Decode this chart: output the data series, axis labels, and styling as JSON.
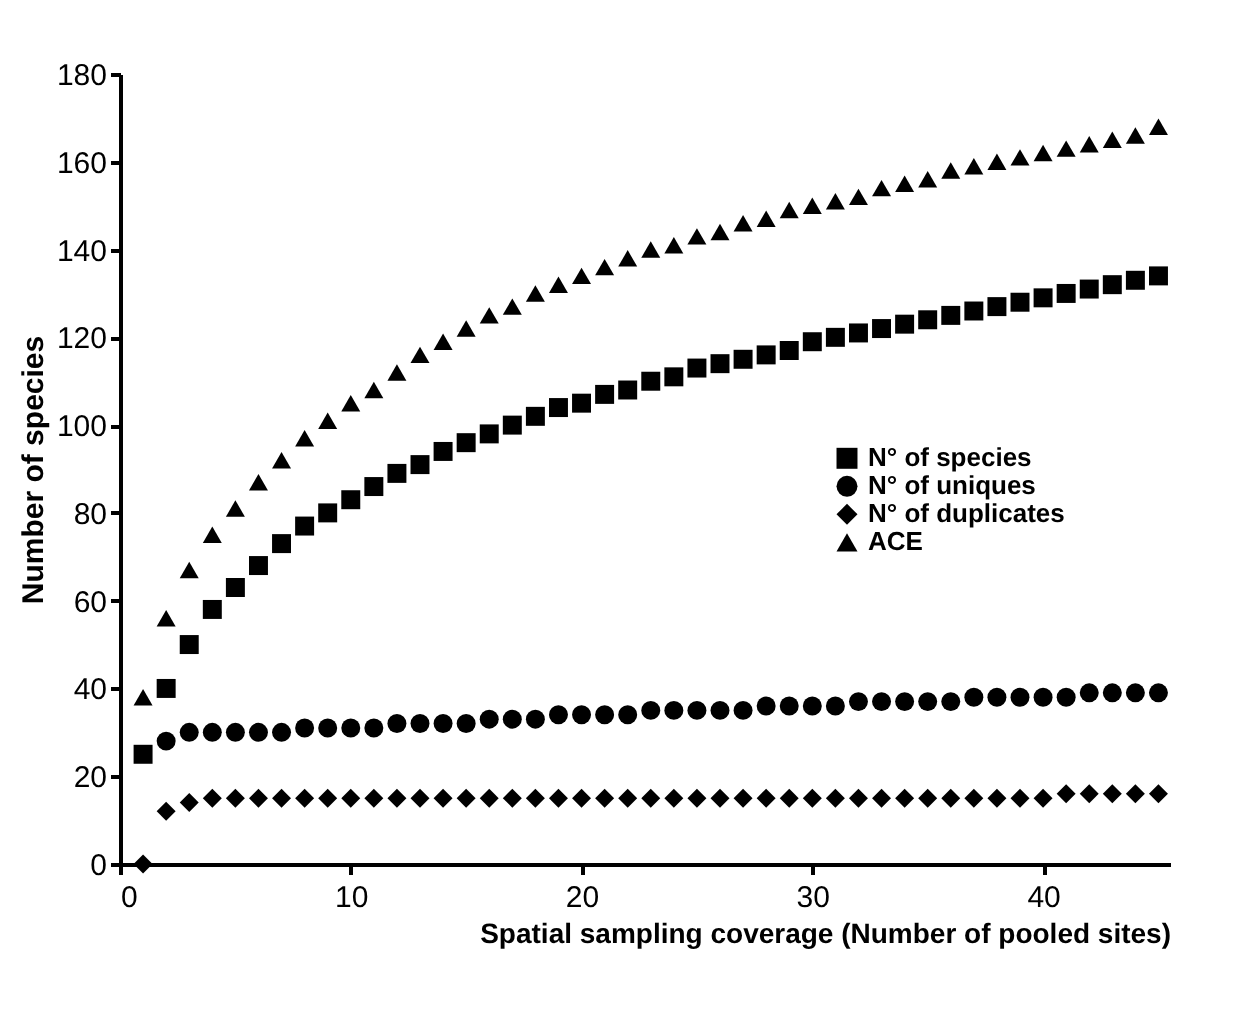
{
  "chart_data": {
    "type": "scatter",
    "xlabel": "Spatial sampling coverage (Number of pooled sites)",
    "ylabel": "Number of species",
    "x": [
      1,
      2,
      3,
      4,
      5,
      6,
      7,
      8,
      9,
      10,
      11,
      12,
      13,
      14,
      15,
      16,
      17,
      18,
      19,
      20,
      21,
      22,
      23,
      24,
      25,
      26,
      27,
      28,
      29,
      30,
      31,
      32,
      33,
      34,
      35,
      36,
      37,
      38,
      39,
      40,
      41,
      42,
      43,
      44,
      45
    ],
    "xlim": [
      0,
      45.5
    ],
    "xticks": [
      0,
      10,
      20,
      30,
      40
    ],
    "ylim": [
      0,
      180
    ],
    "yticks": [
      0,
      20,
      40,
      60,
      80,
      100,
      120,
      140,
      160,
      180
    ],
    "grid": false,
    "legend": "right",
    "series": [
      {
        "name": "N° of species",
        "color": "#000000",
        "marker": "square",
        "values": [
          25,
          40,
          50,
          58,
          63,
          68,
          73,
          77,
          80,
          83,
          86,
          89,
          91,
          94,
          96,
          98,
          100,
          102,
          104,
          105,
          107,
          108,
          110,
          111,
          113,
          114,
          115,
          116,
          117,
          119,
          120,
          121,
          122,
          123,
          124,
          125,
          126,
          127,
          128,
          129,
          130,
          131,
          132,
          133,
          134
        ]
      },
      {
        "name": "N° of uniques",
        "color": "#000000",
        "marker": "circle",
        "values": [
          null,
          28,
          30,
          30,
          30,
          30,
          30,
          31,
          31,
          31,
          31,
          32,
          32,
          32,
          32,
          33,
          33,
          33,
          34,
          34,
          34,
          34,
          35,
          35,
          35,
          35,
          35,
          36,
          36,
          36,
          36,
          37,
          37,
          37,
          37,
          37,
          38,
          38,
          38,
          38,
          38,
          39,
          39,
          39,
          39
        ]
      },
      {
        "name": "N° of duplicates",
        "color": "#000000",
        "marker": "diamond",
        "values": [
          0,
          12,
          14,
          15,
          15,
          15,
          15,
          15,
          15,
          15,
          15,
          15,
          15,
          15,
          15,
          15,
          15,
          15,
          15,
          15,
          15,
          15,
          15,
          15,
          15,
          15,
          15,
          15,
          15,
          15,
          15,
          15,
          15,
          15,
          15,
          15,
          15,
          15,
          15,
          15,
          16,
          16,
          16,
          16,
          16
        ]
      },
      {
        "name": "ACE",
        "color": "#000000",
        "marker": "triangle",
        "values": [
          38,
          56,
          67,
          75,
          81,
          87,
          92,
          97,
          101,
          105,
          108,
          112,
          116,
          119,
          122,
          125,
          127,
          130,
          132,
          134,
          136,
          138,
          140,
          141,
          143,
          144,
          146,
          147,
          149,
          150,
          151,
          152,
          154,
          155,
          156,
          158,
          159,
          160,
          161,
          162,
          163,
          164,
          165,
          166,
          168
        ]
      }
    ]
  }
}
